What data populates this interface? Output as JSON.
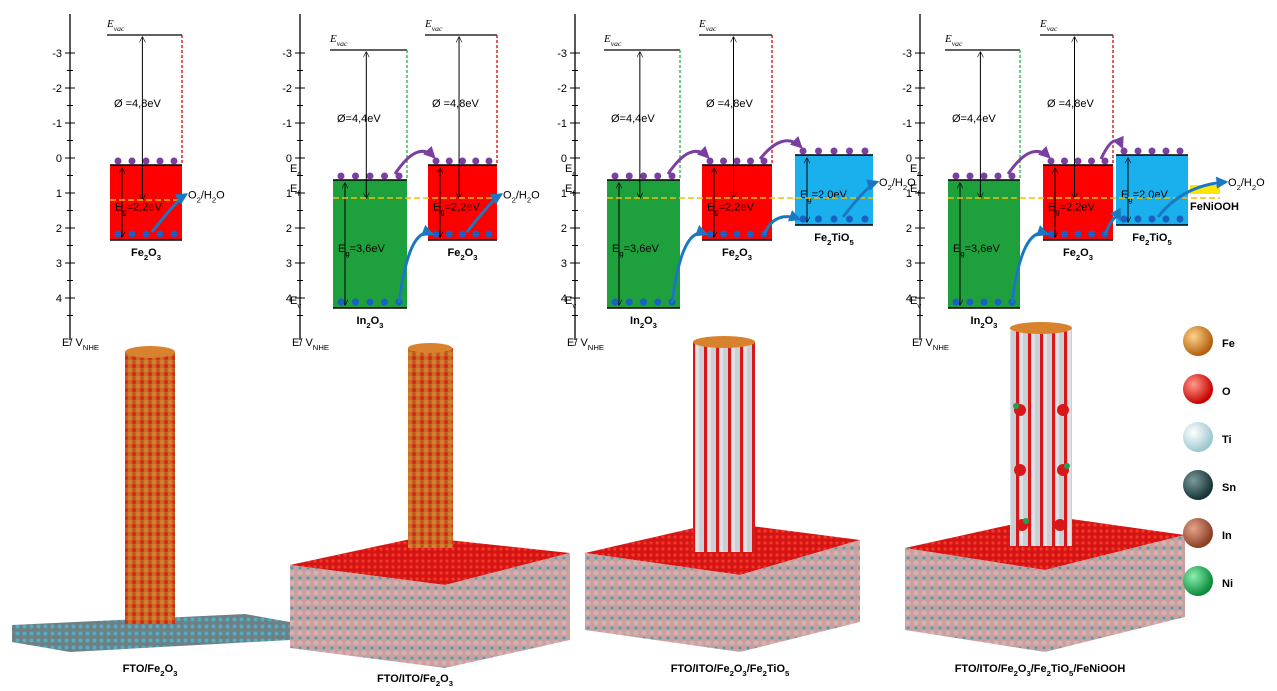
{
  "panels": [
    {
      "yticks": [
        -3,
        -2,
        -1,
        0,
        1,
        2,
        3,
        4
      ],
      "axis_label": [
        "E/ V",
        "NHE"
      ],
      "layers": [
        {
          "name": [
            "Fe",
            "2",
            "O",
            "3"
          ],
          "evac": [
            "E",
            "vac"
          ],
          "work": [
            "Ø =4,8eV"
          ],
          "gap": [
            "E",
            "g",
            "=2,2eV"
          ]
        }
      ],
      "redox": [
        "O",
        "2",
        "/H",
        "2",
        "O"
      ]
    },
    {
      "yticks": [
        -3,
        -2,
        -1,
        0,
        1,
        2,
        3,
        4
      ],
      "axis_label": [
        "E/ V",
        "NHE"
      ],
      "levels": [
        [
          "E",
          "c"
        ],
        [
          "E",
          "f"
        ],
        [
          "E",
          "v"
        ]
      ],
      "layers": [
        {
          "name": [
            "In",
            "2",
            "O",
            "3"
          ],
          "evac": [
            "E",
            "vac"
          ],
          "work": [
            "Ø=4,4eV"
          ],
          "gap": [
            "E",
            "g",
            "=3,6eV"
          ]
        },
        {
          "name": [
            "Fe",
            "2",
            "O",
            "3"
          ],
          "evac": [
            "E",
            "vac"
          ],
          "work": [
            "Ø =4,8eV"
          ],
          "gap": [
            "E",
            "g",
            "=2,2eV"
          ]
        }
      ],
      "redox": [
        "O",
        "2",
        "/H",
        "2",
        "O"
      ]
    },
    {
      "yticks": [
        -3,
        -2,
        -1,
        0,
        1,
        2,
        3,
        4
      ],
      "axis_label": [
        "E/ V",
        "NHE"
      ],
      "levels": [
        [
          "E",
          "c"
        ],
        [
          "E",
          "f"
        ],
        [
          "E",
          "v"
        ]
      ],
      "layers": [
        {
          "name": [
            "In",
            "2",
            "O",
            "3"
          ],
          "evac": [
            "E",
            "vac"
          ],
          "work": [
            "Ø=4,4eV"
          ],
          "gap": [
            "E",
            "g",
            "=3,6eV"
          ]
        },
        {
          "name": [
            "Fe",
            "2",
            "O",
            "3"
          ],
          "evac": [
            "E",
            "vac"
          ],
          "work": [
            "Ø =4,8eV"
          ],
          "gap": [
            "E",
            "g",
            "=2,2eV"
          ]
        },
        {
          "name": [
            "Fe",
            "2",
            "TiO",
            "5"
          ],
          "gap": [
            "E",
            "g",
            "=2,0eV"
          ]
        }
      ],
      "redox": [
        "O",
        "2",
        "/H",
        "2",
        "O"
      ]
    },
    {
      "yticks": [
        -3,
        -2,
        -1,
        0,
        1,
        2,
        3,
        4
      ],
      "axis_label": [
        "E/ V",
        "NHE"
      ],
      "levels": [
        [
          "E",
          "c"
        ],
        [
          "E",
          "f"
        ],
        [
          "E",
          "v"
        ]
      ],
      "layers": [
        {
          "name": [
            "In",
            "2",
            "O",
            "3"
          ],
          "evac": [
            "E",
            "vac"
          ],
          "work": [
            "Ø=4,4eV"
          ],
          "gap": [
            "E",
            "g",
            "=3,6eV"
          ]
        },
        {
          "name": [
            "Fe",
            "2",
            "O",
            "3"
          ],
          "evac": [
            "E",
            "vac"
          ],
          "work": [
            "Ø =4,8eV"
          ],
          "gap": [
            "E",
            "g",
            "=2,2eV"
          ]
        },
        {
          "name": [
            "Fe",
            "2",
            "TiO",
            "5"
          ],
          "gap": [
            "E",
            "g",
            "=2,0eV"
          ]
        }
      ],
      "cocatalyst": [
        "FeNiOOH"
      ],
      "redox": [
        "O",
        "2",
        "/H",
        "2",
        "O"
      ]
    }
  ],
  "captions": [
    [
      "FTO/Fe",
      "2",
      "O",
      "3"
    ],
    [
      "FTO/ITO/Fe",
      "2",
      "O",
      "3"
    ],
    [
      "FTO/ITO/Fe",
      "2",
      "O",
      "3",
      "/Fe",
      "2",
      "TiO",
      "5"
    ],
    [
      "FTO/ITO/Fe",
      "2",
      "O",
      "3",
      "/Fe",
      "2",
      "TiO",
      "5",
      "/FeNiOOH"
    ]
  ],
  "legend": [
    "Fe",
    "O",
    "Ti",
    "Sn",
    "In",
    "Ni"
  ]
}
